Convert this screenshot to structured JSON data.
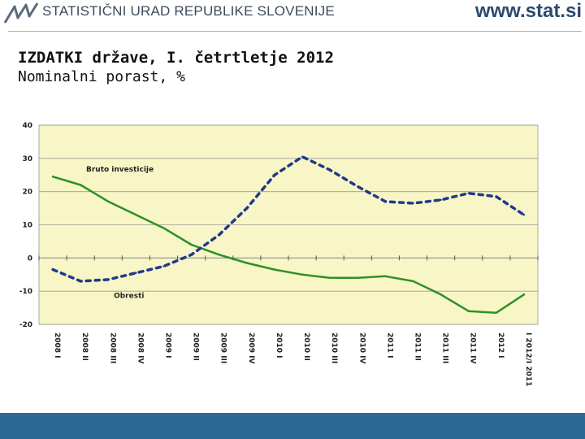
{
  "header": {
    "org_name": "STATISTIČNI URAD REPUBLIKE SLOVENIJE",
    "site_url": "www.stat.si",
    "logo_icon": "sors-logo-icon"
  },
  "slide": {
    "title": "IZDATKI države, I. četrtletje 2012",
    "subtitle": "Nominalni porast, %"
  },
  "colors": {
    "plot_background": "#f8f6c6",
    "green_series": "#2f8f2a",
    "blue_series": "#1f3a8a",
    "footer": "#2c6a94"
  },
  "chart_data": {
    "type": "line",
    "title": "",
    "xlabel": "",
    "ylabel": "",
    "ylim": [
      -20,
      40
    ],
    "yticks": [
      40,
      30,
      20,
      10,
      0,
      -10,
      -20
    ],
    "grid": true,
    "legend": "inline labels",
    "categories": [
      "2008 I",
      "2008 II",
      "2008 III",
      "2008 IV",
      "2009 I",
      "2009 II",
      "2009 III",
      "2009 IV",
      "2010 I",
      "2010 II",
      "2010 III",
      "2010 IV",
      "2011 I",
      "2011 II",
      "2011 III",
      "2011 IV",
      "2012 I",
      "I 2012/I 2011"
    ],
    "series": [
      {
        "name": "Bruto investicije",
        "style": "solid",
        "color": "#2f8f2a",
        "values": [
          24.5,
          22,
          17,
          13,
          9,
          4,
          1,
          -1.5,
          -3.5,
          -5,
          -6,
          -6,
          -5.5,
          -7,
          -11,
          -16,
          -16.5,
          -11
        ]
      },
      {
        "name": "Obresti",
        "style": "dotted",
        "color": "#1f3a8a",
        "values": [
          -3.5,
          -7,
          -6.5,
          -4.5,
          -2.5,
          1,
          7,
          15,
          25,
          30.5,
          26.5,
          21.5,
          17,
          16.5,
          17.5,
          19.5,
          18.5,
          13
        ]
      }
    ]
  }
}
